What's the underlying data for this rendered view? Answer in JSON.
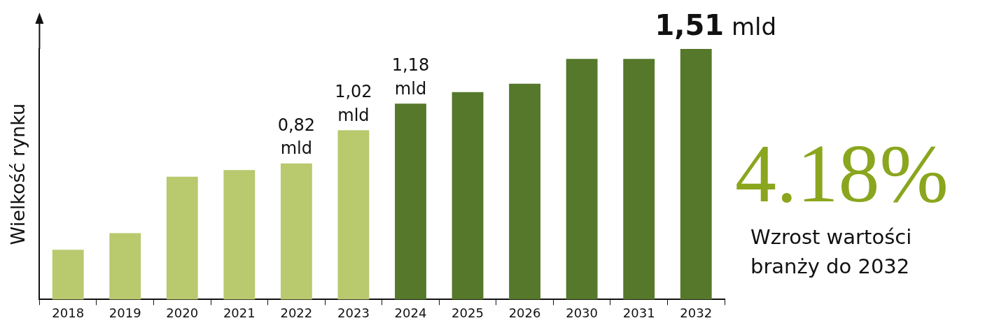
{
  "chart_data": {
    "type": "bar",
    "ylabel": "Wielkość rynku",
    "tick_labels": "x",
    "categories": [
      "2018",
      "2019",
      "2020",
      "2021",
      "2022",
      "2023",
      "2024",
      "2025",
      "2026",
      "2030",
      "2031",
      "2032"
    ],
    "values": [
      0.3,
      0.4,
      0.74,
      0.78,
      0.82,
      1.02,
      1.18,
      1.25,
      1.3,
      1.45,
      1.45,
      1.51
    ],
    "colors": [
      "#b8c96e",
      "#b8c96e",
      "#b8c96e",
      "#b8c96e",
      "#b8c96e",
      "#b8c96e",
      "#55782a",
      "#55782a",
      "#55782a",
      "#55782a",
      "#55782a",
      "#55782a"
    ],
    "value_labels": [
      null,
      null,
      null,
      null,
      "0,82 mld",
      "1,02 mld",
      "1,18 mld",
      null,
      null,
      null,
      null,
      "1,51 mld"
    ],
    "annotations": [
      "4.18%",
      "Wzrost wartości branży do 2032"
    ],
    "grid": false,
    "legend": false
  }
}
